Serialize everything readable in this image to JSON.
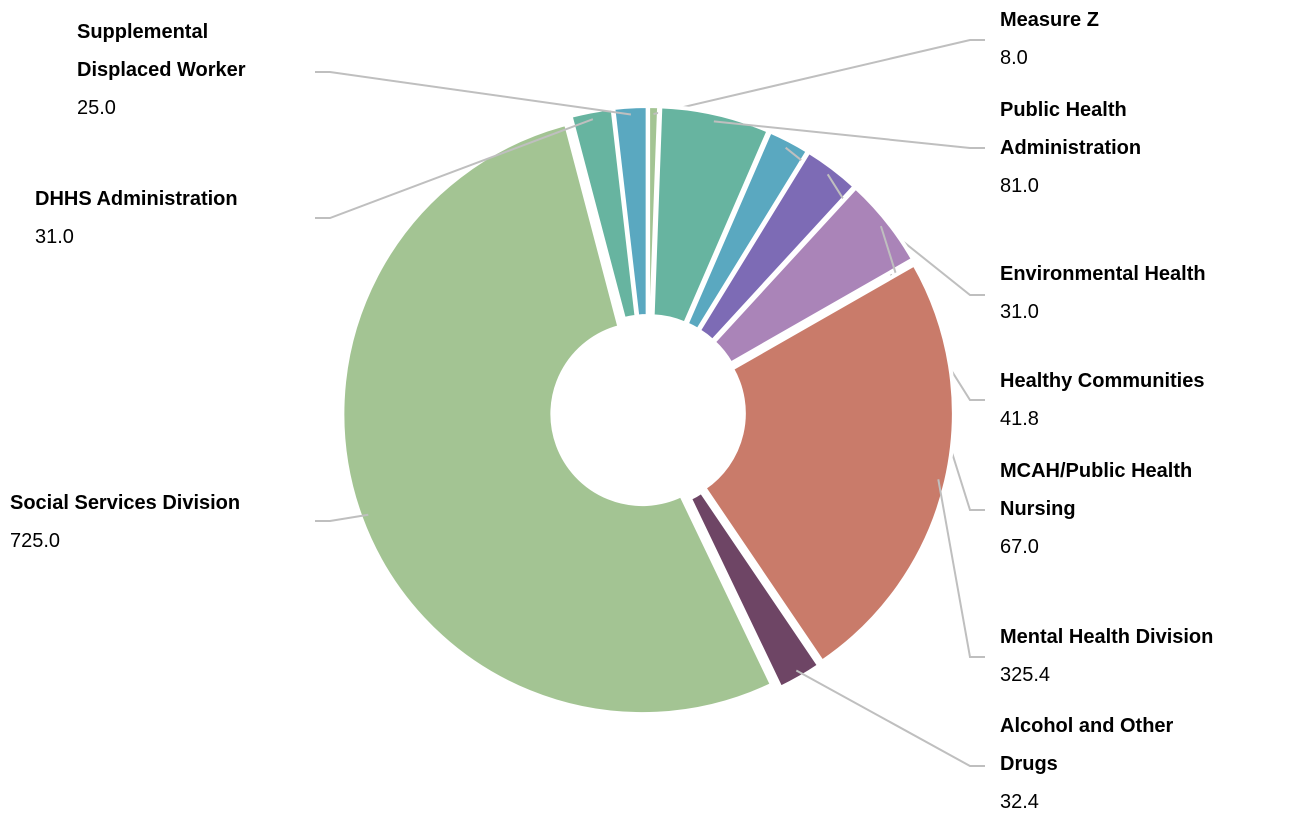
{
  "chart_data": {
    "type": "donut",
    "categories": [
      "Measure Z",
      "Public Health Administration",
      "Environmental Health",
      "Healthy Communities",
      "MCAH/Public Health Nursing",
      "Mental Health Division",
      "Alcohol and Other Drugs",
      "Social Services Division",
      "DHHS Administration",
      "Supplemental Displaced Worker"
    ],
    "values": [
      8,
      81,
      31,
      41.8,
      67,
      325.4,
      32.4,
      725,
      31,
      25
    ],
    "value_labels": [
      "8.0",
      "81.0",
      "31.0",
      "41.8",
      "67.0",
      "325.4",
      "32.4",
      "725.0",
      "31.0",
      "25.0"
    ],
    "colors": [
      "#a3c493",
      "#67b4a0",
      "#5aa8c0",
      "#7d6bb5",
      "#aa84b8",
      "#c97b6a",
      "#6e4565",
      "#a3c493",
      "#67b4a0",
      "#5aa8c0"
    ]
  }
}
